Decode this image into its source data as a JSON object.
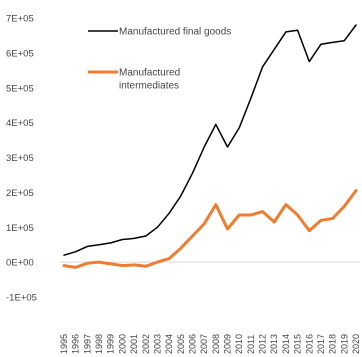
{
  "chart_data": {
    "type": "line",
    "x": [
      "1995",
      "1996",
      "1997",
      "1998",
      "1999",
      "2000",
      "2001",
      "2002",
      "2003",
      "2004",
      "2005",
      "2006",
      "2007",
      "2008",
      "2009",
      "2010",
      "2011",
      "2012",
      "2013",
      "2014",
      "2015",
      "2016",
      "2017",
      "2018",
      "2019",
      "2020"
    ],
    "ytick_labels": [
      "7E+05",
      "6E+05",
      "5E+05",
      "4E+05",
      "3E+05",
      "2E+05",
      "1E+05",
      "0E+00",
      "-1E+05"
    ],
    "ylim": [
      -100000,
      700000
    ],
    "grid": false,
    "legend_position": "top-left",
    "series": [
      {
        "name": "Manufactured final goods",
        "color": "#000000",
        "values": [
          20000,
          30000,
          45000,
          50000,
          55000,
          65000,
          68000,
          75000,
          100000,
          140000,
          190000,
          255000,
          330000,
          395000,
          330000,
          385000,
          470000,
          560000,
          610000,
          660000,
          665000,
          575000,
          625000,
          630000,
          635000,
          680000
        ]
      },
      {
        "name": "Manufactured\nintermediates",
        "color": "#ED7D31",
        "values": [
          -10000,
          -15000,
          -3000,
          0,
          -5000,
          -10000,
          -8000,
          -12000,
          0,
          10000,
          40000,
          75000,
          110000,
          165000,
          95000,
          135000,
          135000,
          145000,
          115000,
          165000,
          135000,
          90000,
          120000,
          125000,
          160000,
          205000
        ]
      }
    ]
  }
}
